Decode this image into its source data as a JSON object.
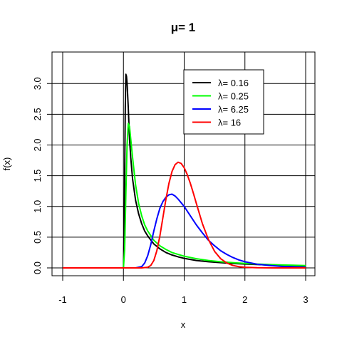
{
  "chart_data": {
    "type": "line",
    "title": "μ= 1",
    "xlabel": "x",
    "ylabel": "f(x)",
    "xlim": [
      -1,
      3
    ],
    "ylim": [
      0,
      3.2
    ],
    "x_ticks": [
      "-1",
      "0",
      "1",
      "2",
      "3"
    ],
    "x_tick_values": [
      -1,
      0,
      1,
      2,
      3
    ],
    "y_ticks": [
      "0.0",
      "0.5",
      "1.0",
      "1.5",
      "2.0",
      "2.5",
      "3.0"
    ],
    "y_tick_values": [
      0,
      0.5,
      1,
      1.5,
      2,
      2.5,
      3
    ],
    "grid": true,
    "legend_position": "top-right",
    "series": [
      {
        "name": "λ= 0.16",
        "color": "#000000",
        "x": [
          -1,
          0,
          0.01,
          0.02,
          0.03,
          0.04,
          0.05,
          0.06,
          0.08,
          0.1,
          0.12,
          0.15,
          0.2,
          0.25,
          0.3,
          0.35,
          0.4,
          0.5,
          0.6,
          0.7,
          0.8,
          0.9,
          1.0,
          1.2,
          1.4,
          1.6,
          1.8,
          2.0,
          2.2,
          2.4,
          2.6,
          2.8,
          3.0
        ],
        "y": [
          0,
          0,
          0.5,
          1.5,
          2.6,
          3.15,
          3.12,
          3.0,
          2.6,
          2.1,
          1.8,
          1.45,
          1.1,
          0.88,
          0.72,
          0.6,
          0.52,
          0.39,
          0.31,
          0.25,
          0.21,
          0.18,
          0.155,
          0.12,
          0.1,
          0.085,
          0.073,
          0.063,
          0.055,
          0.048,
          0.043,
          0.038,
          0.034
        ]
      },
      {
        "name": "λ= 0.25",
        "color": "#00ff00",
        "x": [
          -1,
          0,
          0.02,
          0.04,
          0.06,
          0.08,
          0.1,
          0.12,
          0.15,
          0.2,
          0.25,
          0.3,
          0.35,
          0.4,
          0.5,
          0.6,
          0.7,
          0.8,
          0.9,
          1.0,
          1.2,
          1.4,
          1.6,
          1.8,
          2.0,
          2.2,
          2.4,
          2.6,
          2.8,
          3.0
        ],
        "y": [
          0,
          0,
          0.3,
          1.2,
          2.0,
          2.35,
          2.3,
          2.1,
          1.8,
          1.35,
          1.05,
          0.85,
          0.7,
          0.6,
          0.45,
          0.36,
          0.3,
          0.25,
          0.22,
          0.19,
          0.15,
          0.12,
          0.1,
          0.085,
          0.073,
          0.063,
          0.055,
          0.048,
          0.043,
          0.038
        ]
      },
      {
        "name": "λ= 6.25",
        "color": "#0000ff",
        "x": [
          -1,
          0,
          0.2,
          0.3,
          0.35,
          0.4,
          0.45,
          0.5,
          0.55,
          0.6,
          0.65,
          0.7,
          0.75,
          0.8,
          0.85,
          0.9,
          0.95,
          1.0,
          1.1,
          1.2,
          1.3,
          1.4,
          1.5,
          1.6,
          1.7,
          1.8,
          1.9,
          2.0,
          2.2,
          2.4,
          2.6,
          2.8,
          3.0
        ],
        "y": [
          0,
          0,
          0,
          0.02,
          0.08,
          0.2,
          0.38,
          0.6,
          0.8,
          0.97,
          1.08,
          1.15,
          1.19,
          1.2,
          1.17,
          1.12,
          1.06,
          1.0,
          0.85,
          0.7,
          0.57,
          0.45,
          0.36,
          0.28,
          0.22,
          0.17,
          0.13,
          0.1,
          0.06,
          0.04,
          0.025,
          0.016,
          0.01
        ]
      },
      {
        "name": "λ= 16",
        "color": "#ff0000",
        "x": [
          -1,
          0,
          0.3,
          0.4,
          0.45,
          0.5,
          0.55,
          0.6,
          0.65,
          0.7,
          0.75,
          0.8,
          0.85,
          0.9,
          0.95,
          1.0,
          1.05,
          1.1,
          1.15,
          1.2,
          1.3,
          1.4,
          1.5,
          1.6,
          1.7,
          1.8,
          1.9,
          2.0,
          2.2,
          2.5,
          3.0
        ],
        "y": [
          0,
          0,
          0,
          0.01,
          0.04,
          0.12,
          0.28,
          0.52,
          0.82,
          1.12,
          1.38,
          1.57,
          1.68,
          1.72,
          1.7,
          1.63,
          1.52,
          1.38,
          1.22,
          1.05,
          0.72,
          0.46,
          0.27,
          0.15,
          0.08,
          0.04,
          0.02,
          0.01,
          0.003,
          0,
          0
        ]
      }
    ]
  }
}
